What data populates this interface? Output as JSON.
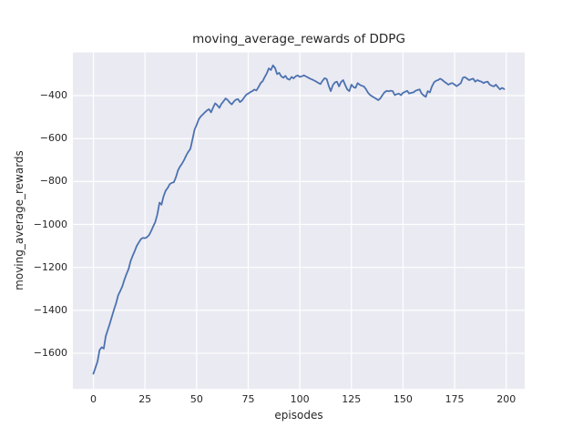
{
  "chart_data": {
    "type": "line",
    "title": "moving_average_rewards of DDPG",
    "xlabel": "episodes",
    "ylabel": "moving_average_rewards",
    "grid": true,
    "legend": "none",
    "xlim": [
      -9.95,
      208.95
    ],
    "ylim": [
      -1766,
      -199
    ],
    "x_ticks": {
      "values": [
        0,
        25,
        50,
        75,
        100,
        125,
        150,
        175,
        200
      ],
      "labels": [
        "0",
        "25",
        "50",
        "75",
        "100",
        "125",
        "150",
        "175",
        "200"
      ]
    },
    "y_ticks": {
      "values": [
        -400,
        -600,
        -800,
        -1000,
        -1200,
        -1400,
        -1600
      ],
      "labels": [
        "−400",
        "−600",
        "−800",
        "−1000",
        "−1200",
        "−1400",
        "−1600"
      ]
    },
    "style": {
      "line_color": "#4c72b0",
      "axes_bg": "#eaeaf2",
      "grid_color": "#ffffff",
      "text_color": "#262626",
      "figure_bg": "#ffffff"
    },
    "series": [
      {
        "x_start": 0,
        "x_step": 1,
        "values": [
          -1695,
          -1667,
          -1638,
          -1585,
          -1572,
          -1578,
          -1520,
          -1490,
          -1460,
          -1428,
          -1396,
          -1366,
          -1330,
          -1310,
          -1288,
          -1258,
          -1232,
          -1208,
          -1172,
          -1146,
          -1124,
          -1100,
          -1084,
          -1068,
          -1062,
          -1064,
          -1059,
          -1049,
          -1030,
          -1008,
          -988,
          -952,
          -898,
          -908,
          -868,
          -842,
          -830,
          -812,
          -806,
          -803,
          -779,
          -748,
          -730,
          -716,
          -699,
          -678,
          -661,
          -648,
          -604,
          -558,
          -537,
          -511,
          -497,
          -488,
          -478,
          -469,
          -463,
          -478,
          -455,
          -436,
          -445,
          -457,
          -439,
          -427,
          -413,
          -420,
          -432,
          -441,
          -429,
          -419,
          -416,
          -430,
          -423,
          -409,
          -396,
          -390,
          -384,
          -379,
          -372,
          -376,
          -360,
          -342,
          -333,
          -314,
          -296,
          -273,
          -281,
          -259,
          -271,
          -300,
          -294,
          -310,
          -317,
          -308,
          -322,
          -326,
          -313,
          -320,
          -310,
          -306,
          -313,
          -310,
          -306,
          -311,
          -316,
          -321,
          -325,
          -330,
          -335,
          -341,
          -346,
          -331,
          -319,
          -323,
          -355,
          -379,
          -351,
          -339,
          -335,
          -357,
          -336,
          -328,
          -351,
          -371,
          -379,
          -349,
          -360,
          -364,
          -342,
          -349,
          -354,
          -357,
          -369,
          -386,
          -397,
          -403,
          -409,
          -415,
          -421,
          -413,
          -398,
          -385,
          -378,
          -380,
          -377,
          -379,
          -398,
          -393,
          -391,
          -398,
          -387,
          -382,
          -378,
          -390,
          -387,
          -385,
          -378,
          -374,
          -371,
          -390,
          -399,
          -406,
          -379,
          -385,
          -358,
          -339,
          -331,
          -328,
          -321,
          -327,
          -335,
          -342,
          -349,
          -344,
          -342,
          -349,
          -356,
          -349,
          -342,
          -317,
          -314,
          -321,
          -328,
          -324,
          -321,
          -335,
          -328,
          -332,
          -335,
          -342,
          -337,
          -335,
          -349,
          -354,
          -357,
          -349,
          -361,
          -371,
          -364,
          -370
        ]
      }
    ]
  }
}
